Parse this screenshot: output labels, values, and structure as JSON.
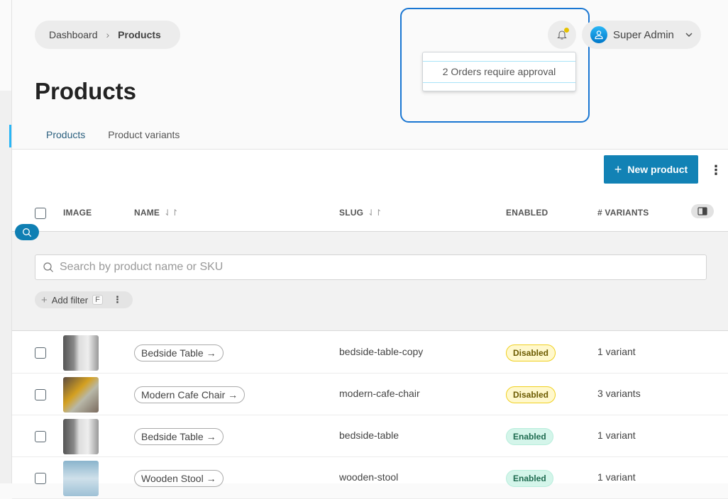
{
  "breadcrumb": {
    "items": [
      "Dashboard",
      "Products"
    ]
  },
  "header": {
    "user_name": "Super Admin",
    "notification": "2 Orders require approval",
    "notification_dot_color": "#e6c200"
  },
  "page": {
    "title": "Products",
    "tabs": [
      {
        "label": "Products",
        "active": true
      },
      {
        "label": "Product variants",
        "active": false
      }
    ]
  },
  "toolbar": {
    "new_product_label": "New product",
    "accent_color": "#1282b5"
  },
  "table": {
    "columns": {
      "image": "IMAGE",
      "name": "NAME",
      "slug": "SLUG",
      "enabled": "ENABLED",
      "variants": "# VARIANTS"
    },
    "search_placeholder": "Search by product name or SKU",
    "add_filter_label": "Add filter",
    "add_filter_shortcut": "F",
    "rows": [
      {
        "name": "Bedside Table",
        "slug": "bedside-table-copy",
        "status": "Disabled",
        "variants": "1 variant"
      },
      {
        "name": "Modern Cafe Chair",
        "slug": "modern-cafe-chair",
        "status": "Disabled",
        "variants": "3 variants"
      },
      {
        "name": "Bedside Table",
        "slug": "bedside-table",
        "status": "Enabled",
        "variants": "1 variant"
      },
      {
        "name": "Wooden Stool",
        "slug": "wooden-stool",
        "status": "Enabled",
        "variants": "1 variant"
      }
    ]
  }
}
